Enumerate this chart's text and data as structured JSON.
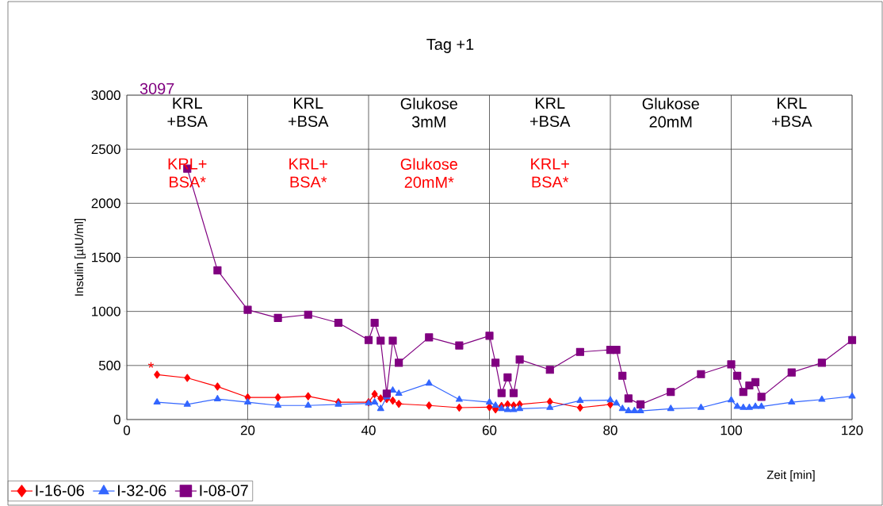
{
  "chart_data": {
    "type": "line",
    "title": "Tag +1",
    "xlabel": "Zeit [min]",
    "ylabel": "Insulin [µIU/ml]",
    "xlim": [
      0,
      120
    ],
    "xticks": [
      0,
      20,
      40,
      60,
      80,
      100,
      120
    ],
    "ylim": [
      0,
      3000
    ],
    "yticks": [
      0,
      500,
      1000,
      1500,
      2000,
      2500,
      3000
    ],
    "grid": true,
    "legend": "bottom left",
    "annotations": [
      "KRL +BSA",
      "KRL +BSA",
      "Glukose 3mM",
      "KRL +BSA",
      "Glukose 20mM",
      "KRL +BSA",
      "KRL+ BSA*",
      "KRL+ BSA*",
      "Glukose 20mM*",
      "KRL+ BSA*",
      "*",
      "3097"
    ],
    "series": [
      {
        "name": "I-16-06",
        "color": "#ff0000",
        "marker": "diamond",
        "x": [
          5,
          10,
          15,
          20,
          25,
          30,
          35,
          40,
          41,
          42,
          43,
          44,
          45,
          50,
          55,
          60,
          61,
          62,
          63,
          64,
          65,
          70,
          75,
          80
        ],
        "values": [
          415,
          385,
          305,
          205,
          205,
          215,
          160,
          160,
          235,
          195,
          190,
          175,
          145,
          130,
          110,
          115,
          95,
          125,
          140,
          130,
          140,
          165,
          110,
          140
        ]
      },
      {
        "name": "I-32-06",
        "color": "#3366ff",
        "marker": "triangle",
        "x": [
          5,
          10,
          15,
          20,
          25,
          30,
          35,
          40,
          41,
          42,
          43,
          44,
          45,
          50,
          55,
          60,
          61,
          62,
          63,
          64,
          65,
          70,
          75,
          80,
          81,
          82,
          83,
          84,
          85,
          90,
          95,
          100,
          101,
          102,
          103,
          104,
          105,
          110,
          115,
          120
        ],
        "values": [
          160,
          140,
          190,
          160,
          130,
          130,
          140,
          150,
          160,
          100,
          210,
          270,
          240,
          335,
          185,
          160,
          130,
          100,
          90,
          90,
          100,
          110,
          175,
          180,
          150,
          100,
          80,
          80,
          80,
          100,
          110,
          180,
          120,
          110,
          110,
          120,
          120,
          160,
          185,
          215
        ]
      },
      {
        "name": "I-08-07",
        "color": "#800080",
        "marker": "square",
        "x": [
          10,
          15,
          20,
          25,
          30,
          35,
          40,
          41,
          42,
          43,
          44,
          45,
          50,
          55,
          60,
          61,
          62,
          63,
          64,
          65,
          70,
          75,
          80,
          81,
          82,
          83,
          85,
          90,
          95,
          100,
          101,
          102,
          103,
          104,
          105,
          110,
          115,
          120
        ],
        "values": [
          2320,
          1380,
          1015,
          940,
          970,
          895,
          735,
          895,
          730,
          240,
          730,
          525,
          760,
          685,
          775,
          525,
          245,
          390,
          245,
          555,
          460,
          625,
          645,
          645,
          405,
          195,
          140,
          255,
          420,
          510,
          405,
          255,
          315,
          345,
          210,
          435,
          525,
          735
        ]
      }
    ]
  }
}
